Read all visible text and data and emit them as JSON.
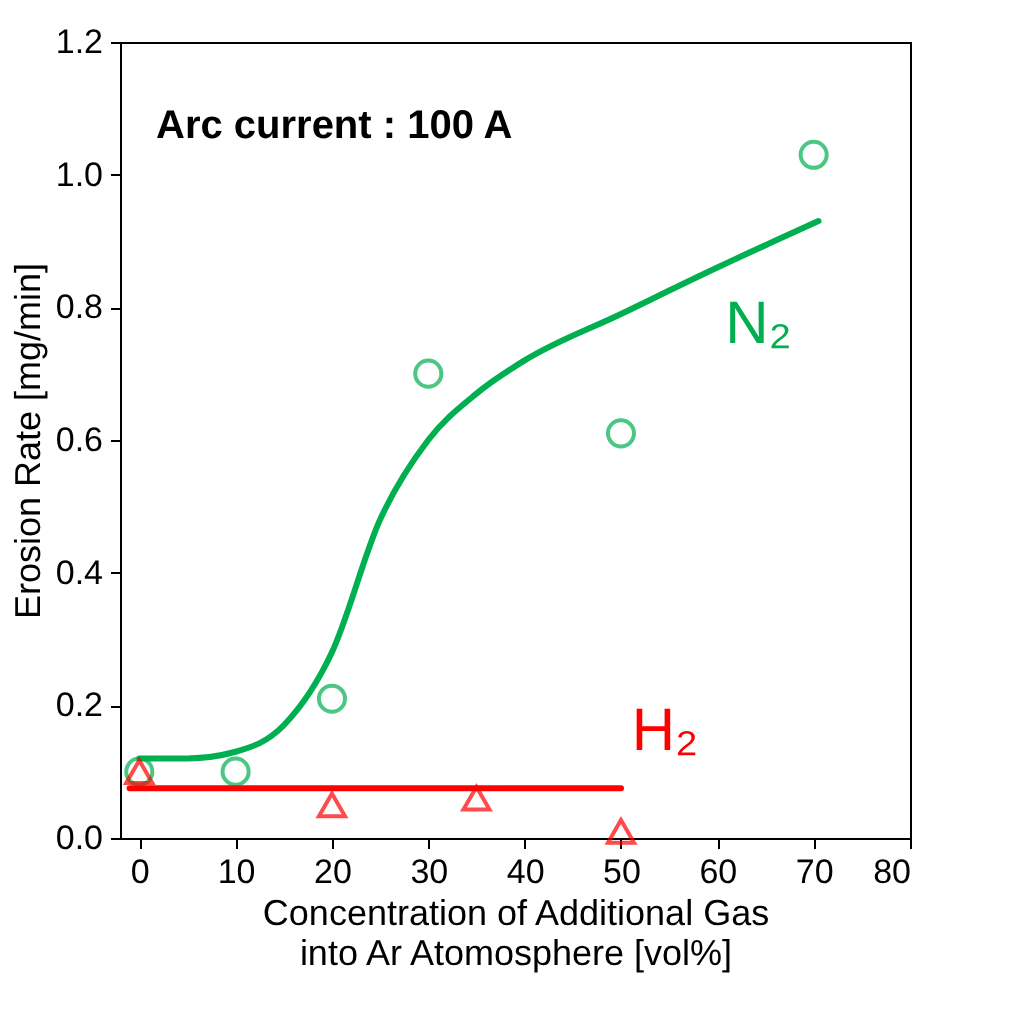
{
  "chart_data": {
    "type": "scatter",
    "xlabel": "Concentration of Additional Gas\ninto Ar Atomosphere [vol%]",
    "ylabel": "Erosion Rate [mg/min]",
    "annotations": [
      "Arc current : 100 A"
    ],
    "xlim": [
      -2,
      80
    ],
    "xticks": [
      0,
      10,
      20,
      30,
      40,
      50,
      60,
      70,
      80
    ],
    "ylim": [
      0,
      1.2
    ],
    "yticks": [
      {
        "value": 0,
        "label": "0.0"
      },
      {
        "value": 0.2,
        "label": "0.2"
      },
      {
        "value": 0.4,
        "label": "0.4"
      },
      {
        "value": 0.6,
        "label": "0.6"
      },
      {
        "value": 0.8,
        "label": "0.8"
      },
      {
        "value": 1,
        "label": "1.0"
      },
      {
        "value": 1.2,
        "label": "1.2"
      }
    ],
    "series": [
      {
        "name": "N₂",
        "marker": "circle",
        "color": "#00b050",
        "x": [
          0,
          10,
          20,
          30,
          50,
          70
        ],
        "values": [
          0.1,
          0.1,
          0.21,
          0.7,
          0.61,
          1.03
        ]
      },
      {
        "type": "line",
        "marker": "none",
        "color": "#00b050",
        "x": [
          0,
          5,
          10,
          15,
          20,
          25,
          30,
          35,
          40,
          50,
          60,
          70.5
        ],
        "values": [
          0.12,
          0.12,
          0.13,
          0.17,
          0.28,
          0.48,
          0.6,
          0.67,
          0.72,
          0.79,
          0.86,
          0.93
        ]
      },
      {
        "name": "H₂",
        "marker": "triangle",
        "color": "#ff0000",
        "x": [
          0,
          20,
          35,
          50
        ],
        "values": [
          0.1,
          0.05,
          0.06,
          0.01
        ]
      },
      {
        "type": "line",
        "marker": "none",
        "color": "#ff0000",
        "x": [
          -1,
          50
        ],
        "values": [
          0.075,
          0.075
        ]
      }
    ]
  }
}
